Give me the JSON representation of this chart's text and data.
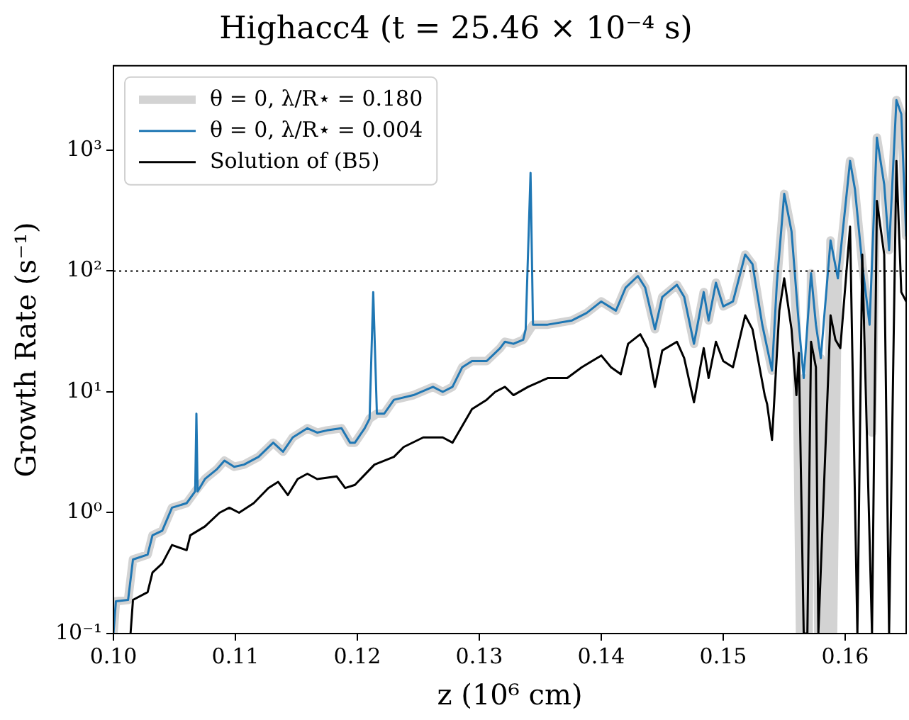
{
  "chart_data": {
    "type": "line",
    "title": "Highacc4 (t = 25.46 × 10⁻⁴ s)",
    "xlabel": "z (10⁶ cm)",
    "ylabel": "Growth Rate (s⁻¹)",
    "log": "y",
    "grid": false,
    "legend": "top left",
    "marker": "none",
    "line_style": "solid",
    "xlim": [
      0.1,
      0.165
    ],
    "xticks": [
      {
        "value": 0.1,
        "label": "0.10"
      },
      0.11,
      0.12,
      0.13,
      0.14,
      0.15,
      0.16
    ],
    "ylim": [
      0.1,
      5000
    ],
    "yticks": [
      {
        "value": 0.1,
        "label": "10⁻¹"
      },
      {
        "value": 1,
        "label": "10⁰"
      },
      {
        "value": 10,
        "label": "10¹"
      },
      {
        "value": 100,
        "label": "10²"
      },
      {
        "value": 1000,
        "label": "10³"
      }
    ],
    "ref_lines": [
      {
        "axis": "y",
        "value": 100,
        "color": "#000000",
        "line_style": "dotted"
      }
    ],
    "series": [
      {
        "name": "θ = 0, λ/R⋆ = 0.180",
        "color": "#d3d3d3",
        "x": [
          0.1,
          0.1002,
          0.1012,
          0.1016,
          0.1028,
          0.1032,
          0.104,
          0.1048,
          0.106,
          0.1067,
          0.1075,
          0.1085,
          0.1091,
          0.1099,
          0.1107,
          0.1119,
          0.1131,
          0.1139,
          0.1147,
          0.1159,
          0.1167,
          0.1175,
          0.1187,
          0.1194,
          0.1198,
          0.1206,
          0.121,
          0.1216,
          0.1222,
          0.123,
          0.1246,
          0.1262,
          0.127,
          0.1278,
          0.1286,
          0.1294,
          0.1306,
          0.1317,
          0.1321,
          0.1328,
          0.1336,
          0.1344,
          0.1356,
          0.1376,
          0.1388,
          0.14,
          0.1412,
          0.142,
          0.143,
          0.1436,
          0.1444,
          0.145,
          0.1462,
          0.1468,
          0.1476,
          0.1484,
          0.1488,
          0.1494,
          0.15,
          0.1508,
          0.1518,
          0.1524,
          0.1532,
          0.154,
          0.1544,
          0.155,
          0.1556,
          0.156,
          0.1563,
          0.1566,
          0.157,
          0.1572,
          0.1576,
          0.1578,
          0.158,
          0.1585,
          0.1588,
          0.159,
          0.1594,
          0.16,
          0.1604,
          0.1608,
          0.1614,
          0.162,
          0.1622,
          0.1626,
          0.1632,
          0.1636,
          0.1642,
          0.1646,
          0.165
        ],
        "values": [
          0.1,
          0.185,
          0.19,
          0.41,
          0.45,
          0.65,
          0.71,
          1.1,
          1.2,
          1.5,
          1.9,
          2.3,
          2.7,
          2.4,
          2.5,
          2.9,
          3.8,
          3.2,
          4.2,
          5.0,
          4.6,
          4.8,
          5.0,
          3.8,
          3.8,
          5.0,
          6.0,
          6.6,
          6.6,
          8.6,
          9.4,
          11,
          10,
          11,
          16,
          18,
          18,
          23,
          26,
          25,
          27,
          36,
          36,
          39,
          45,
          56,
          47,
          73,
          91,
          73,
          33,
          61,
          77,
          61,
          25,
          67,
          39,
          80,
          51,
          56,
          137,
          114,
          36,
          15,
          80,
          435,
          213,
          36,
          0.1,
          13,
          0.1,
          96,
          36,
          0.1,
          19,
          0.1,
          179,
          0.1,
          87,
          333,
          815,
          476,
          114,
          36,
          4.6,
          1270,
          521,
          149,
          2600,
          1990,
          195
        ]
      },
      {
        "name": "θ = 0, λ/R⋆ = 0.004",
        "color": "#1f77b4",
        "x": [
          0.1,
          0.1002,
          0.1012,
          0.1016,
          0.1028,
          0.1032,
          0.104,
          0.1048,
          0.106,
          0.1067,
          0.1068,
          0.1069,
          0.1075,
          0.1085,
          0.1091,
          0.1099,
          0.1107,
          0.1119,
          0.1131,
          0.1139,
          0.1147,
          0.1159,
          0.1167,
          0.1175,
          0.1187,
          0.1194,
          0.1198,
          0.1206,
          0.121,
          0.1213,
          0.1216,
          0.1222,
          0.123,
          0.1246,
          0.1262,
          0.127,
          0.1278,
          0.1286,
          0.1294,
          0.1306,
          0.1317,
          0.1321,
          0.1328,
          0.1336,
          0.1338,
          0.1342,
          0.1344,
          0.1356,
          0.1376,
          0.1388,
          0.14,
          0.1412,
          0.142,
          0.143,
          0.1436,
          0.1444,
          0.145,
          0.1462,
          0.1468,
          0.1476,
          0.1484,
          0.1488,
          0.1494,
          0.15,
          0.1508,
          0.1518,
          0.1524,
          0.1532,
          0.154,
          0.1544,
          0.155,
          0.1556,
          0.1562,
          0.1566,
          0.1572,
          0.1576,
          0.158,
          0.1588,
          0.1594,
          0.16,
          0.1604,
          0.1608,
          0.1614,
          0.162,
          0.1626,
          0.1632,
          0.1636,
          0.1642,
          0.1646,
          0.165
        ],
        "values": [
          0.1,
          0.185,
          0.19,
          0.41,
          0.45,
          0.65,
          0.71,
          1.1,
          1.2,
          1.5,
          6.6,
          1.5,
          1.9,
          2.3,
          2.7,
          2.4,
          2.5,
          2.9,
          3.8,
          3.2,
          4.2,
          5.0,
          4.6,
          4.8,
          5.0,
          3.8,
          3.8,
          5.0,
          6.0,
          67,
          6.6,
          6.6,
          8.6,
          9.4,
          11,
          10,
          11,
          16,
          18,
          18,
          23,
          26,
          25,
          27,
          33,
          650,
          36,
          36,
          39,
          45,
          56,
          47,
          73,
          91,
          73,
          33,
          61,
          77,
          61,
          25,
          67,
          39,
          80,
          51,
          56,
          137,
          114,
          36,
          15,
          80,
          435,
          213,
          36,
          13,
          96,
          36,
          19,
          179,
          87,
          333,
          815,
          476,
          114,
          36,
          1270,
          521,
          149,
          2600,
          1990,
          195
        ]
      },
      {
        "name": "Solution of (B5)",
        "color": "#000000",
        "x": [
          0.1014,
          0.1016,
          0.1028,
          0.1032,
          0.104,
          0.1048,
          0.106,
          0.1063,
          0.1075,
          0.1087,
          0.1095,
          0.1103,
          0.1115,
          0.1127,
          0.1135,
          0.1143,
          0.1151,
          0.1159,
          0.1167,
          0.1183,
          0.119,
          0.1198,
          0.1214,
          0.123,
          0.1238,
          0.1254,
          0.127,
          0.1278,
          0.1294,
          0.1306,
          0.1313,
          0.1321,
          0.1328,
          0.134,
          0.1356,
          0.1372,
          0.1384,
          0.14,
          0.1408,
          0.1416,
          0.1422,
          0.1432,
          0.1438,
          0.1444,
          0.145,
          0.1462,
          0.1468,
          0.1476,
          0.1484,
          0.1488,
          0.1494,
          0.15,
          0.1508,
          0.1518,
          0.1524,
          0.1534,
          0.1536,
          0.154,
          0.1546,
          0.155,
          0.1556,
          0.156,
          0.1562,
          0.1566,
          0.1569,
          0.1572,
          0.1576,
          0.1578,
          0.1588,
          0.1592,
          0.1596,
          0.1604,
          0.161,
          0.1614,
          0.1622,
          0.1626,
          0.1632,
          0.1636,
          0.1642,
          0.1646,
          0.165
        ],
        "values": [
          0.1,
          0.19,
          0.22,
          0.32,
          0.38,
          0.54,
          0.49,
          0.65,
          0.77,
          1.0,
          1.1,
          1.0,
          1.2,
          1.6,
          1.8,
          1.4,
          1.9,
          2.1,
          1.9,
          2.0,
          1.6,
          1.7,
          2.5,
          2.9,
          3.5,
          4.2,
          4.2,
          3.8,
          7.2,
          8.6,
          10,
          11,
          9.4,
          11,
          13,
          13,
          16,
          20,
          16,
          14,
          25,
          30,
          23,
          11,
          22,
          26,
          19,
          8.2,
          23,
          13,
          26,
          18,
          16,
          43,
          33,
          9.4,
          7.9,
          4.0,
          47,
          87,
          33,
          9.4,
          21,
          0.1,
          0.1,
          26,
          16,
          0.1,
          43,
          27,
          23,
          233,
          0.1,
          137,
          0.1,
          381,
          137,
          0.1,
          815,
          67,
          56
        ]
      }
    ]
  }
}
